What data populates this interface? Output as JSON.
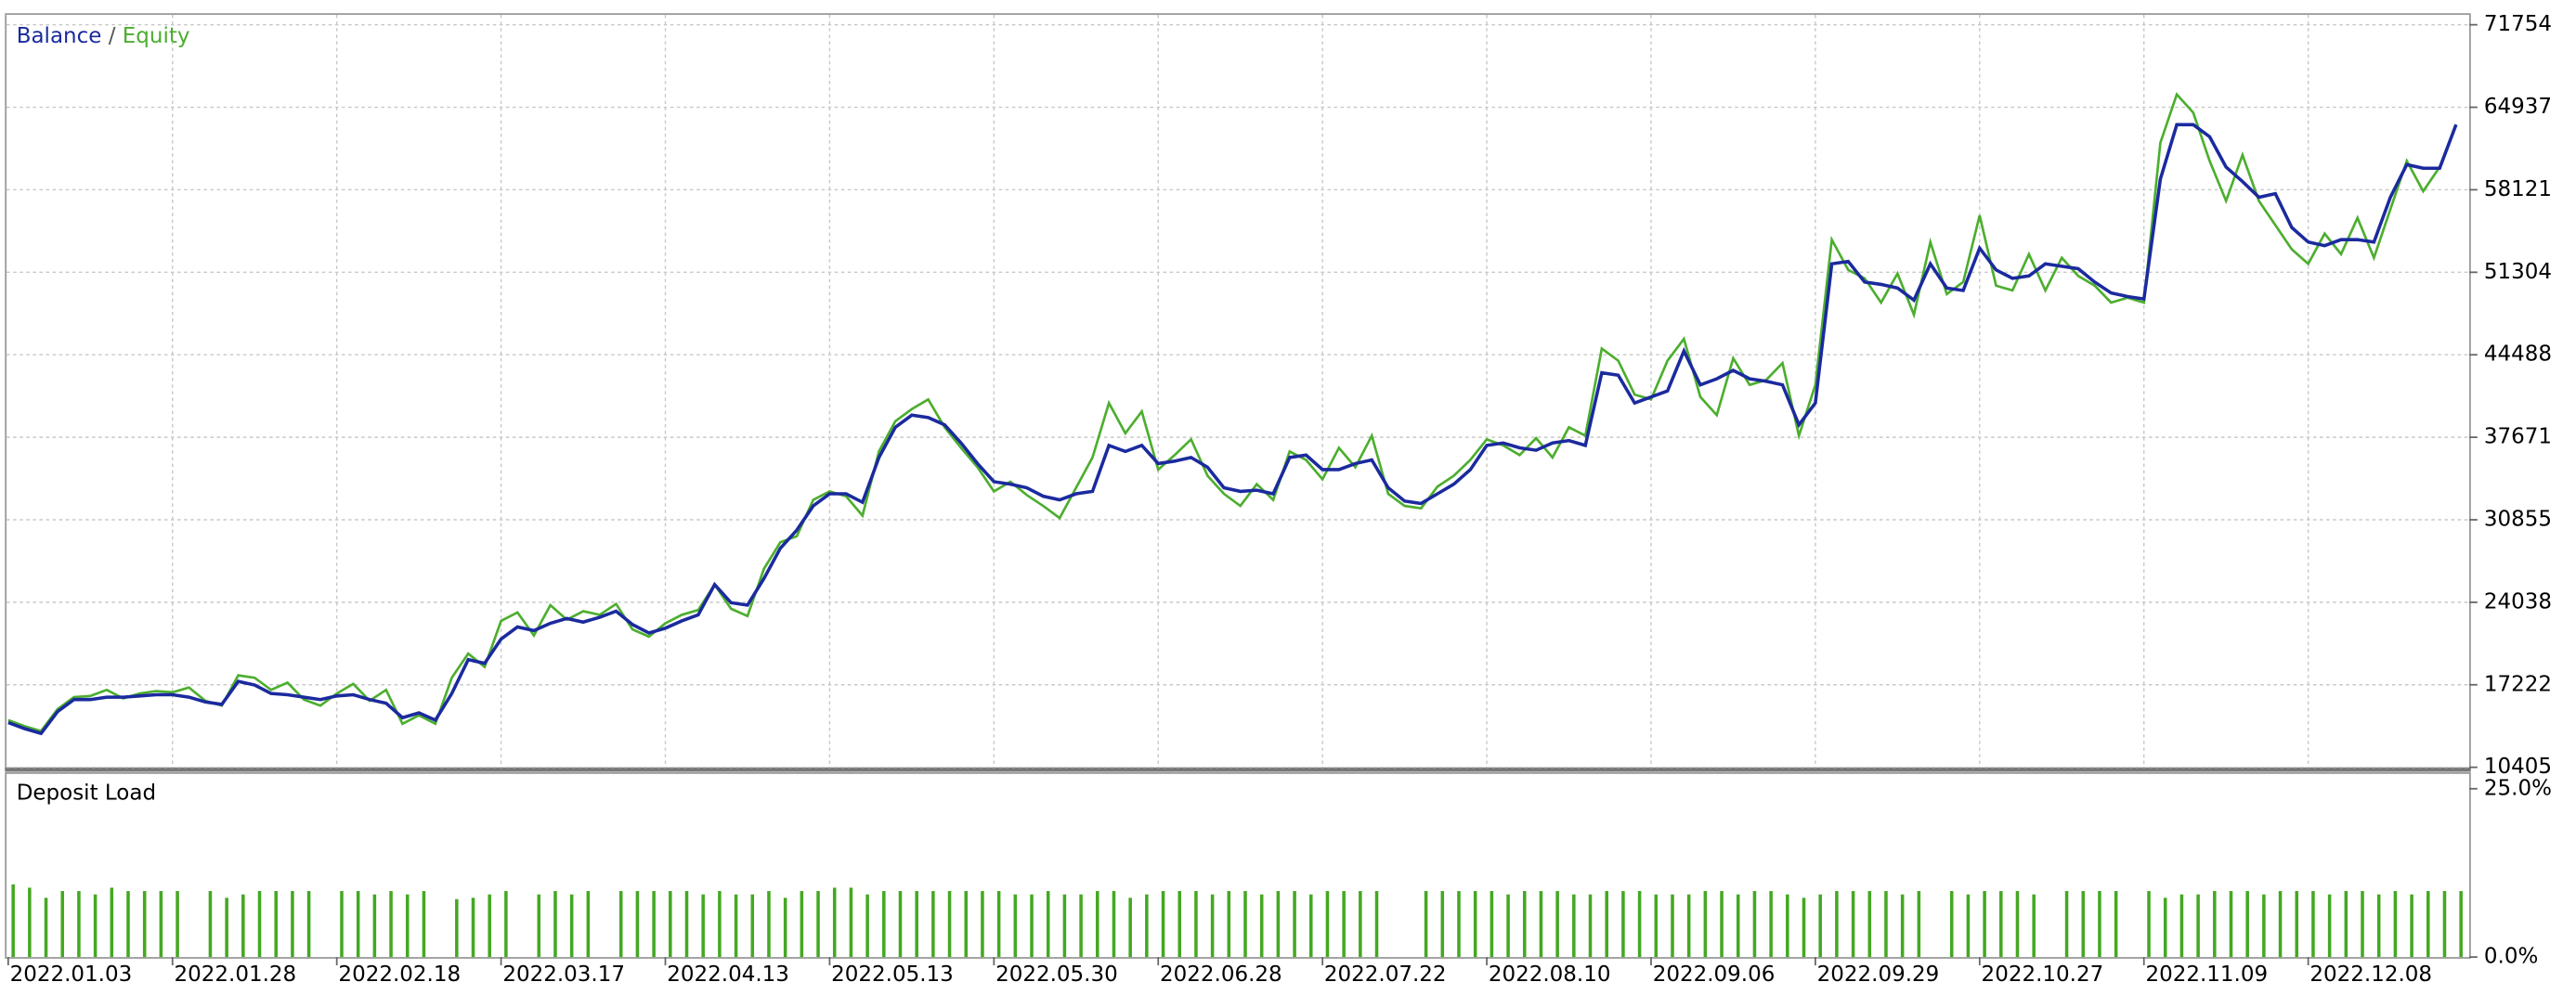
{
  "chart_data": [
    {
      "type": "line",
      "legend_separator": "/",
      "ylim": [
        10405,
        71754
      ],
      "yticks": [
        10405,
        17222,
        24038,
        30855,
        37671,
        44488,
        51304,
        58121,
        64937,
        71754
      ],
      "grid": true,
      "series": [
        {
          "name": "Balance",
          "color": "#1b2a9e",
          "values": [
            14100,
            13600,
            13200,
            15000,
            16000,
            16000,
            16200,
            16200,
            16300,
            16400,
            16400,
            16200,
            15800,
            15600,
            17500,
            17200,
            16500,
            16400,
            16200,
            16000,
            16300,
            16400,
            16000,
            15700,
            14500,
            14900,
            14300,
            16500,
            19300,
            19000,
            21000,
            22000,
            21700,
            22300,
            22700,
            22400,
            22800,
            23300,
            22200,
            21500,
            21900,
            22500,
            23000,
            25500,
            24000,
            23800,
            26000,
            28500,
            30000,
            32000,
            33000,
            33000,
            32300,
            36000,
            38500,
            39500,
            39300,
            38700,
            37200,
            35500,
            34000,
            33800,
            33500,
            32800,
            32500,
            33000,
            33200,
            37000,
            36500,
            37000,
            35500,
            35700,
            36000,
            35200,
            33500,
            33200,
            33300,
            33000,
            36000,
            36200,
            35000,
            35000,
            35500,
            35800,
            33500,
            32400,
            32200,
            33000,
            33800,
            35000,
            37000,
            37200,
            36800,
            36600,
            37200,
            37400,
            37000,
            43000,
            42800,
            40500,
            41000,
            41500,
            44800,
            42000,
            42500,
            43200,
            42500,
            42300,
            42000,
            38700,
            40500,
            52000,
            52200,
            50500,
            50300,
            50000,
            49000,
            52000,
            50000,
            49800,
            53300,
            51500,
            50800,
            51000,
            52000,
            51800,
            51600,
            50500,
            49600,
            49300,
            49100,
            59000,
            63500,
            63500,
            62500,
            60000,
            58800,
            57500,
            57800,
            55000,
            53800,
            53500,
            54000,
            54000,
            53800,
            57500,
            60200,
            59900,
            59900,
            63500
          ]
        },
        {
          "name": "Equity",
          "color": "#4cae2e",
          "values": [
            14300,
            13800,
            13400,
            15200,
            16200,
            16300,
            16800,
            16100,
            16500,
            16700,
            16600,
            17000,
            15900,
            15500,
            18000,
            17800,
            16800,
            17400,
            16000,
            15500,
            16500,
            17300,
            15900,
            16800,
            14000,
            14700,
            14000,
            17800,
            19800,
            18700,
            22500,
            23200,
            21300,
            23800,
            22600,
            23300,
            23000,
            23900,
            21800,
            21200,
            22300,
            23000,
            23400,
            25500,
            23500,
            22900,
            26800,
            29000,
            29500,
            32500,
            33200,
            32800,
            31200,
            36500,
            39000,
            40000,
            40800,
            38500,
            36800,
            35200,
            33200,
            34000,
            32900,
            32000,
            31000,
            33500,
            36000,
            40500,
            38000,
            39800,
            35000,
            36200,
            37500,
            34500,
            33000,
            32000,
            33800,
            32500,
            36500,
            35800,
            34200,
            36800,
            35200,
            37800,
            33000,
            32000,
            31800,
            33600,
            34500,
            35800,
            37500,
            37000,
            36200,
            37600,
            36000,
            38500,
            37800,
            45000,
            44000,
            41200,
            40800,
            44000,
            45800,
            41000,
            39500,
            44200,
            42000,
            42400,
            43800,
            37800,
            42000,
            54000,
            51500,
            50800,
            48800,
            51200,
            47800,
            53800,
            49500,
            50500,
            56000,
            50200,
            49800,
            52800,
            49800,
            52500,
            51000,
            50200,
            48800,
            49200,
            48800,
            62000,
            66000,
            64500,
            60500,
            57200,
            61000,
            57200,
            55200,
            53200,
            52000,
            54500,
            52800,
            55800,
            52500,
            56500,
            60500,
            58000,
            60000,
            63500
          ]
        }
      ]
    },
    {
      "type": "bar",
      "title": "Deposit Load",
      "color": "#44a822",
      "ylim": [
        0,
        25
      ],
      "yticks": [
        {
          "value": 0,
          "label": "0.0%"
        },
        {
          "value": 25,
          "label": "25.0%"
        }
      ],
      "categories": [
        "2022.01.03",
        null,
        null,
        null,
        null,
        null,
        null,
        null,
        null,
        null,
        "2022.01.28",
        null,
        null,
        null,
        null,
        null,
        null,
        null,
        null,
        null,
        "2022.02.18",
        null,
        null,
        null,
        null,
        null,
        null,
        null,
        null,
        null,
        "2022.03.17",
        null,
        null,
        null,
        null,
        null,
        null,
        null,
        null,
        null,
        "2022.04.13",
        null,
        null,
        null,
        null,
        null,
        null,
        null,
        null,
        null,
        "2022.05.13",
        null,
        null,
        null,
        null,
        null,
        null,
        null,
        null,
        null,
        "2022.05.30",
        null,
        null,
        null,
        null,
        null,
        null,
        null,
        null,
        null,
        "2022.06.28",
        null,
        null,
        null,
        null,
        null,
        null,
        null,
        null,
        null,
        "2022.07.22",
        null,
        null,
        null,
        null,
        null,
        null,
        null,
        null,
        null,
        "2022.08.10",
        null,
        null,
        null,
        null,
        null,
        null,
        null,
        null,
        null,
        "2022.09.06",
        null,
        null,
        null,
        null,
        null,
        null,
        null,
        null,
        null,
        "2022.09.29",
        null,
        null,
        null,
        null,
        null,
        null,
        null,
        null,
        null,
        "2022.10.27",
        null,
        null,
        null,
        null,
        null,
        null,
        null,
        null,
        null,
        "2022.11.09",
        null,
        null,
        null,
        null,
        null,
        null,
        null,
        null,
        null,
        "2022.12.08",
        null,
        null,
        null,
        null,
        null,
        null,
        null,
        null,
        null
      ],
      "values": [
        10.8,
        10.3,
        8.8,
        9.8,
        9.8,
        9.3,
        10.3,
        9.8,
        9.8,
        9.8,
        9.8,
        null,
        9.8,
        8.8,
        9.3,
        9.8,
        9.8,
        9.8,
        9.8,
        null,
        9.8,
        9.8,
        9.3,
        9.8,
        9.3,
        9.8,
        null,
        8.6,
        8.8,
        9.3,
        9.8,
        null,
        9.3,
        9.8,
        9.3,
        9.8,
        null,
        9.8,
        9.8,
        9.8,
        9.8,
        9.8,
        9.3,
        9.8,
        9.3,
        9.3,
        9.8,
        8.8,
        9.8,
        9.8,
        10.3,
        10.3,
        9.3,
        9.8,
        9.8,
        9.8,
        9.8,
        9.8,
        9.8,
        9.8,
        9.8,
        9.3,
        9.3,
        9.8,
        9.3,
        9.3,
        9.8,
        9.8,
        8.8,
        9.3,
        9.8,
        9.8,
        9.8,
        9.3,
        9.8,
        9.8,
        9.3,
        9.8,
        9.8,
        9.3,
        9.8,
        9.8,
        9.8,
        9.8,
        null,
        null,
        9.8,
        9.8,
        9.8,
        9.8,
        9.8,
        9.3,
        9.8,
        9.8,
        9.8,
        9.3,
        9.3,
        9.8,
        9.8,
        9.8,
        9.3,
        9.3,
        9.3,
        9.8,
        9.8,
        9.3,
        9.8,
        9.8,
        9.3,
        8.8,
        9.3,
        9.8,
        9.8,
        9.8,
        9.8,
        9.3,
        9.8,
        null,
        9.8,
        9.3,
        9.8,
        9.8,
        9.8,
        9.3,
        null,
        9.8,
        9.8,
        9.8,
        9.8,
        null,
        9.8,
        8.8,
        9.3,
        9.3,
        9.8,
        9.8,
        9.8,
        9.3,
        9.8,
        9.8,
        9.8,
        9.3,
        9.8,
        9.8,
        9.3,
        9.8,
        9.3,
        9.8,
        9.8,
        9.8
      ]
    }
  ]
}
